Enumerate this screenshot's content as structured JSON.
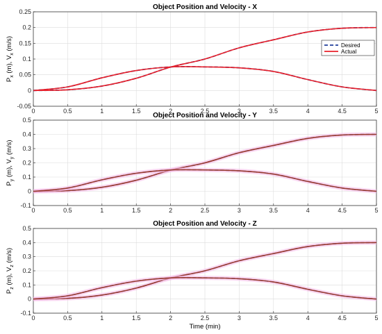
{
  "chart_data": [
    {
      "type": "line",
      "title": "Object Position and Velocity - X",
      "ylabel": {
        "base1": "P",
        "sub1": "x",
        "mid": " (m), V",
        "sub2": "x",
        "unit": " (m/s)"
      },
      "xlabel": "",
      "xlim": [
        0,
        5
      ],
      "ylim": [
        -0.05,
        0.25
      ],
      "xticks": [
        "0",
        "0.5",
        "1",
        "1.5",
        "2",
        "2.5",
        "3",
        "3.5",
        "4",
        "4.5",
        "5"
      ],
      "yticks": [
        "-0.05",
        "0",
        "0.05",
        "0.1",
        "0.15",
        "0.2",
        "0.25"
      ],
      "grid": true,
      "legend": {
        "placement": "right",
        "entries": [
          "Desired",
          "Actual"
        ]
      },
      "series": [
        {
          "name": "Desired",
          "color": "#1f3d99",
          "dash": true,
          "x": [
            0,
            0.5,
            1,
            1.5,
            2,
            2.5,
            3,
            3.5,
            4,
            4.5,
            5
          ],
          "y": [
            0,
            0.0023,
            0.0141,
            0.0389,
            0.0744,
            0.1,
            0.1356,
            0.1611,
            0.1859,
            0.1977,
            0.2
          ]
        },
        {
          "name": "Desired",
          "color": "#1f3d99",
          "dash": true,
          "x": [
            0,
            0.5,
            1,
            1.5,
            2,
            2.5,
            3,
            3.5,
            4,
            4.5,
            5
          ],
          "y": [
            0,
            0.0115,
            0.0403,
            0.0634,
            0.0749,
            0.075,
            0.072,
            0.0605,
            0.0346,
            0.0115,
            0
          ]
        },
        {
          "name": "Actual",
          "color": "#e8202a",
          "x": [
            0,
            0.5,
            1,
            1.5,
            2,
            2.5,
            3,
            3.5,
            4,
            4.5,
            5
          ],
          "y": [
            0,
            0.0023,
            0.0141,
            0.0389,
            0.0744,
            0.1,
            0.1356,
            0.1611,
            0.1859,
            0.1977,
            0.2
          ]
        },
        {
          "name": "Actual",
          "color": "#e8202a",
          "x": [
            0,
            0.5,
            1,
            1.5,
            2,
            2.5,
            3,
            3.5,
            4,
            4.5,
            5
          ],
          "y": [
            0,
            0.0115,
            0.0403,
            0.0634,
            0.0749,
            0.075,
            0.072,
            0.0605,
            0.0346,
            0.0115,
            0
          ]
        }
      ]
    },
    {
      "type": "line",
      "title": "Object Position and Velocity - Y",
      "ylabel": {
        "base1": "P",
        "sub1": "y",
        "mid": " (m), V",
        "sub2": "y",
        "unit": " (m/s)"
      },
      "xlabel": "",
      "xlim": [
        0,
        5
      ],
      "ylim": [
        -0.1,
        0.5
      ],
      "xticks": [
        "0",
        "0.5",
        "1",
        "1.5",
        "2",
        "2.5",
        "3",
        "3.5",
        "4",
        "4.5",
        "5"
      ],
      "yticks": [
        "-0.1",
        "0",
        "0.1",
        "0.2",
        "0.3",
        "0.4",
        "0.5"
      ],
      "grid": true,
      "series": [
        {
          "name": "Desired",
          "color": "#1f3d99",
          "dash": true,
          "x": [
            0,
            0.5,
            1,
            1.5,
            2,
            2.5,
            3,
            3.5,
            4,
            4.5,
            5
          ],
          "y": [
            0,
            0.0046,
            0.0282,
            0.0778,
            0.1488,
            0.2,
            0.2712,
            0.3222,
            0.3718,
            0.3954,
            0.4
          ]
        },
        {
          "name": "Desired",
          "color": "#1f3d99",
          "dash": true,
          "x": [
            0,
            0.5,
            1,
            1.5,
            2,
            2.5,
            3,
            3.5,
            4,
            4.5,
            5
          ],
          "y": [
            0,
            0.023,
            0.0806,
            0.1268,
            0.1498,
            0.15,
            0.144,
            0.121,
            0.0692,
            0.023,
            0
          ]
        },
        {
          "name": "Actual",
          "color": "#e8202a",
          "x": [
            0,
            0.5,
            1,
            1.5,
            2,
            2.5,
            3,
            3.5,
            4,
            4.5,
            5
          ],
          "y": [
            0,
            0.0046,
            0.0282,
            0.0778,
            0.1488,
            0.2,
            0.2712,
            0.3222,
            0.3718,
            0.3954,
            0.4
          ]
        },
        {
          "name": "Actual",
          "color": "#e8202a",
          "x": [
            0,
            0.5,
            1,
            1.5,
            2,
            2.5,
            3,
            3.5,
            4,
            4.5,
            5
          ],
          "y": [
            0,
            0.023,
            0.0806,
            0.1268,
            0.1498,
            0.15,
            0.144,
            0.121,
            0.0692,
            0.023,
            0
          ]
        }
      ]
    },
    {
      "type": "line",
      "title": "Object Position and Velocity - Z",
      "ylabel": {
        "base1": "P",
        "sub1": "z",
        "mid": " (m), V",
        "sub2": "z",
        "unit": " (m/s)"
      },
      "xlabel": "Time (min)",
      "xlim": [
        0,
        5
      ],
      "ylim": [
        -0.1,
        0.5
      ],
      "xticks": [
        "0",
        "0.5",
        "1",
        "1.5",
        "2",
        "2.5",
        "3",
        "3.5",
        "4",
        "4.5",
        "5"
      ],
      "yticks": [
        "-0.1",
        "0",
        "0.1",
        "0.2",
        "0.3",
        "0.4",
        "0.5"
      ],
      "grid": true,
      "series": [
        {
          "name": "Desired",
          "color": "#1f3d99",
          "dash": true,
          "x": [
            0,
            0.5,
            1,
            1.5,
            2,
            2.5,
            3,
            3.5,
            4,
            4.5,
            5
          ],
          "y": [
            0,
            0.0046,
            0.0282,
            0.0778,
            0.1488,
            0.2,
            0.2712,
            0.3222,
            0.3718,
            0.3954,
            0.4
          ]
        },
        {
          "name": "Desired",
          "color": "#1f3d99",
          "dash": true,
          "x": [
            0,
            0.5,
            1,
            1.5,
            2,
            2.5,
            3,
            3.5,
            4,
            4.5,
            5
          ],
          "y": [
            0,
            0.023,
            0.0806,
            0.1268,
            0.1498,
            0.15,
            0.144,
            0.121,
            0.0692,
            0.023,
            0
          ]
        },
        {
          "name": "Actual",
          "color": "#e8202a",
          "x": [
            0,
            0.5,
            1,
            1.5,
            2,
            2.5,
            3,
            3.5,
            4,
            4.5,
            5
          ],
          "y": [
            0,
            0.0046,
            0.0282,
            0.0778,
            0.1488,
            0.2,
            0.2712,
            0.3222,
            0.3718,
            0.3954,
            0.4
          ]
        },
        {
          "name": "Actual",
          "color": "#e8202a",
          "x": [
            0,
            0.5,
            1,
            1.5,
            2,
            2.5,
            3,
            3.5,
            4,
            4.5,
            5
          ],
          "y": [
            0,
            0.023,
            0.0806,
            0.1268,
            0.1498,
            0.15,
            0.144,
            0.121,
            0.0692,
            0.023,
            0
          ]
        }
      ]
    }
  ]
}
